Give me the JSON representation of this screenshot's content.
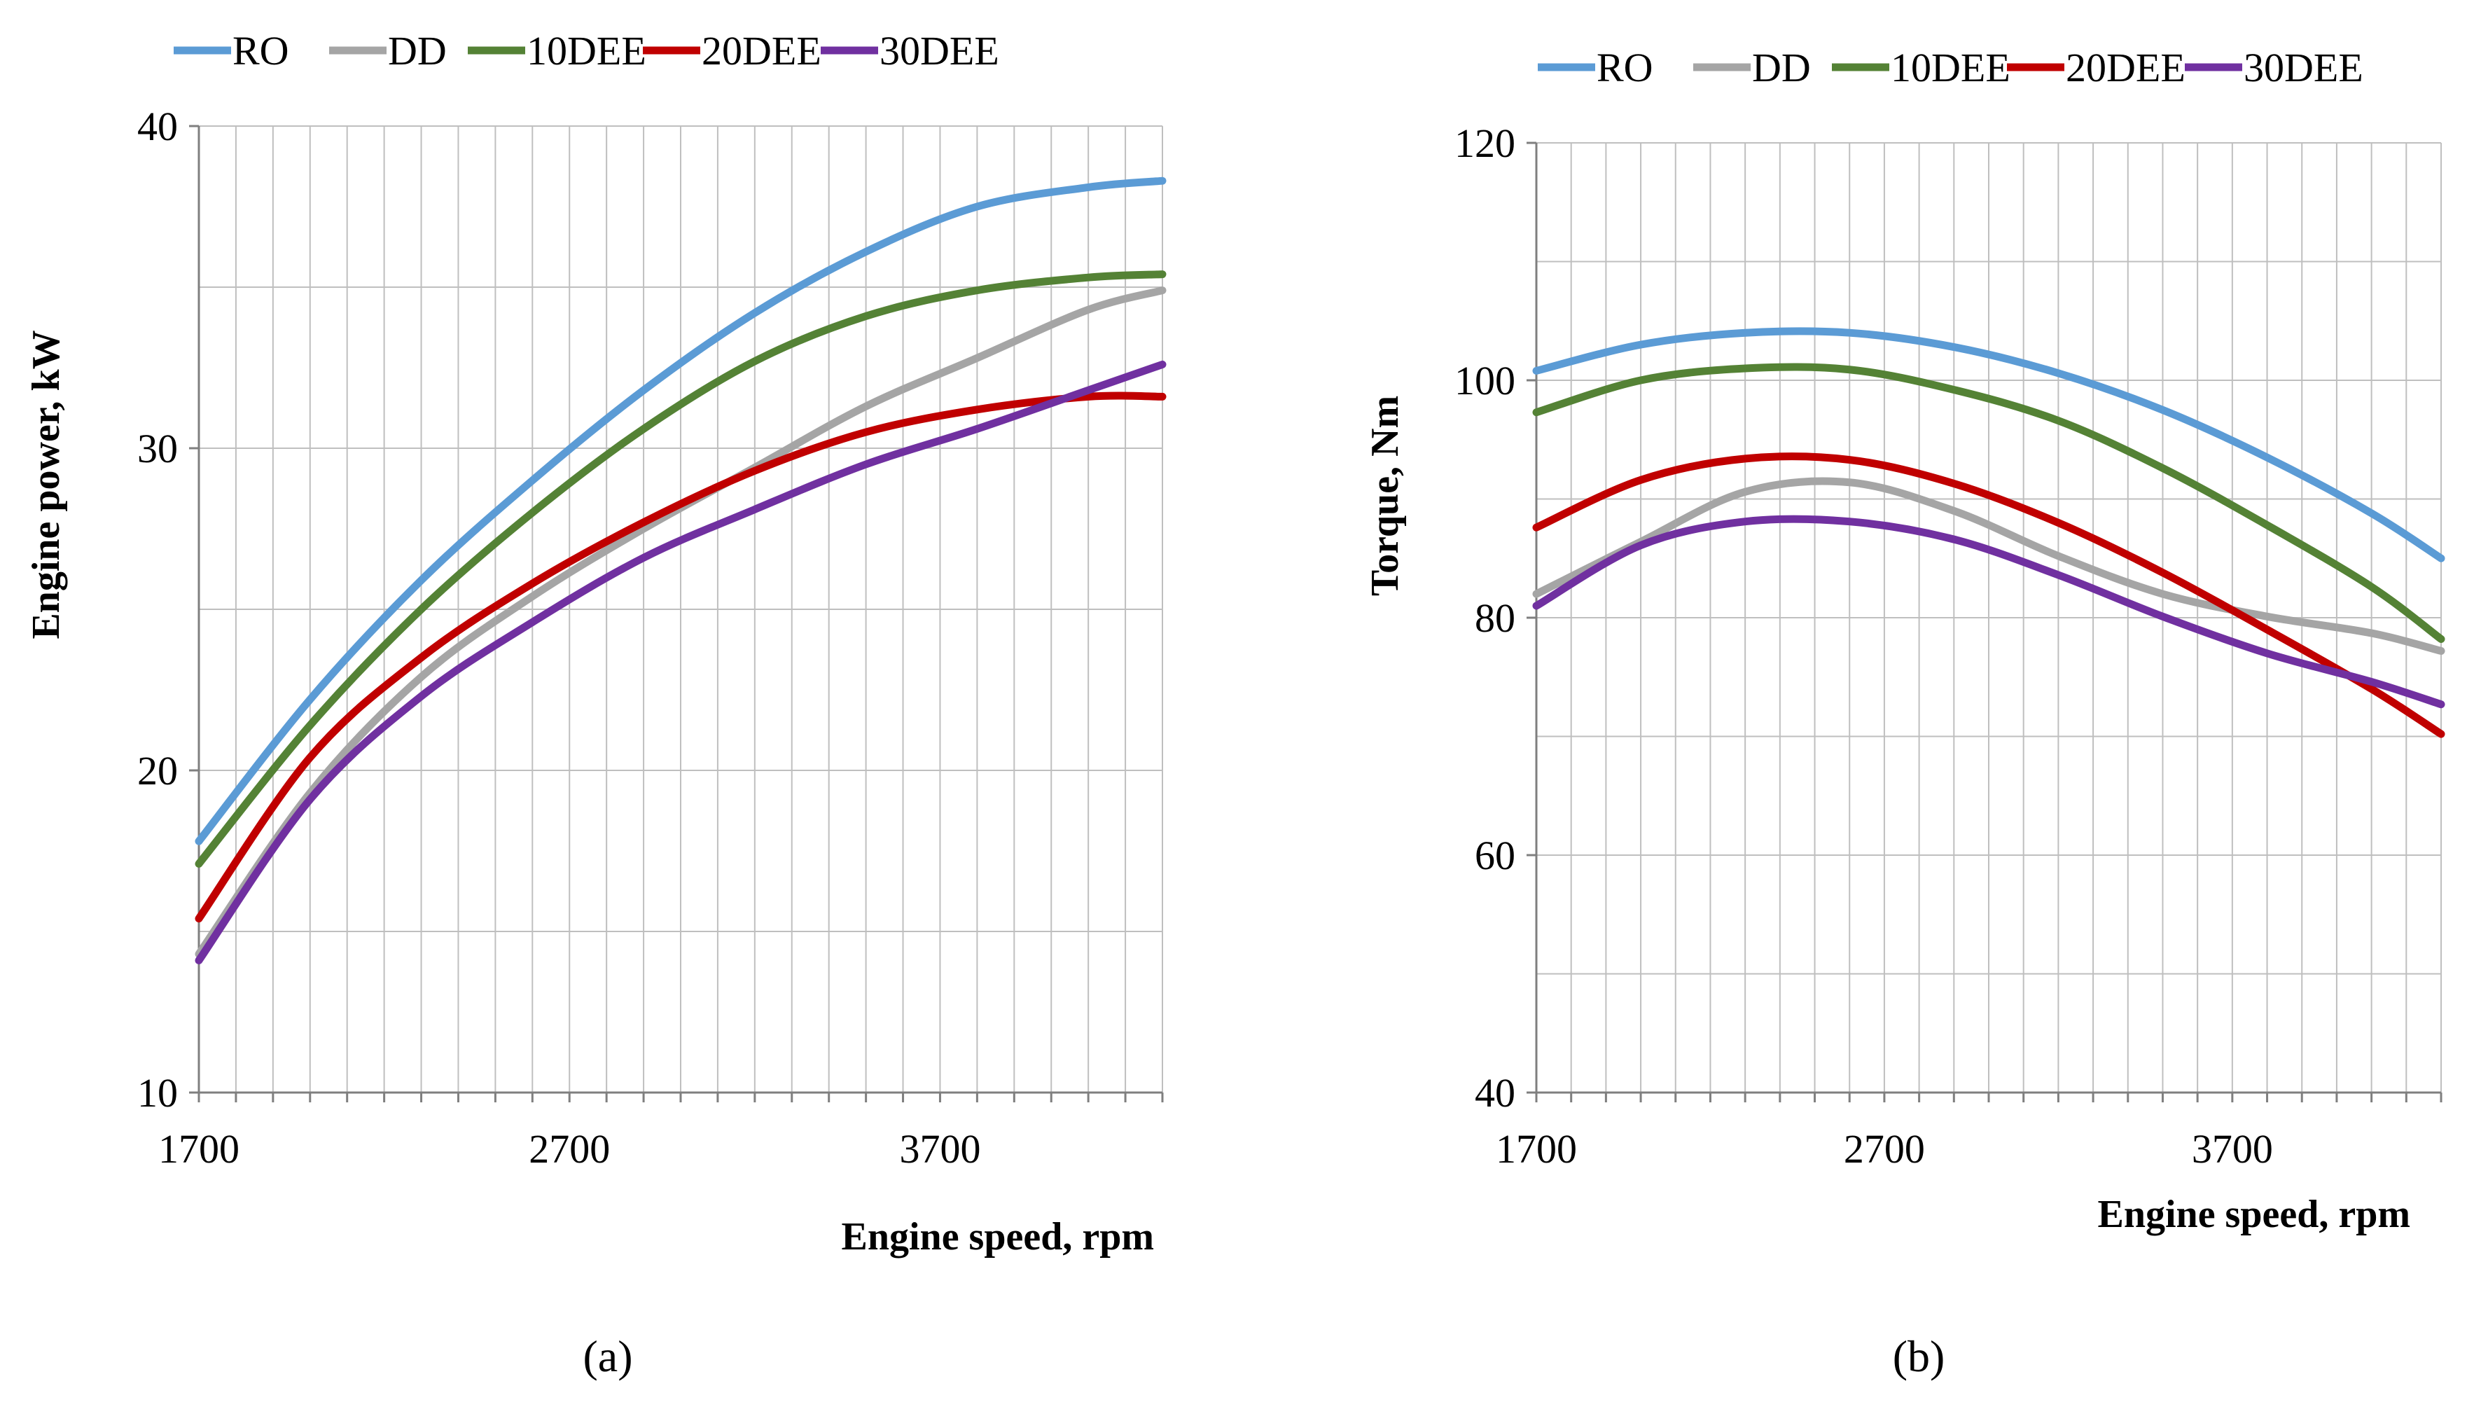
{
  "chart_data": [
    {
      "panel": "(a)",
      "type": "line",
      "title": "",
      "xlabel": "Engine speed, rpm",
      "ylabel": "Engine power, kW",
      "xlim": [
        1700,
        4300
      ],
      "ylim": [
        10,
        40
      ],
      "x_ticks": [
        1700,
        2700,
        3700
      ],
      "y_ticks": [
        10,
        20,
        30,
        40
      ],
      "grid": true,
      "legend_position": "top",
      "series": [
        {
          "name": "RO",
          "color": "#5b9bd5",
          "x": [
            1700,
            2000,
            2300,
            2600,
            2900,
            3200,
            3500,
            3800,
            4100,
            4300
          ],
          "y": [
            17.8,
            22.2,
            25.9,
            29.0,
            31.8,
            34.2,
            36.1,
            37.5,
            38.1,
            38.3
          ]
        },
        {
          "name": "DD",
          "color": "#a5a5a5",
          "x": [
            1700,
            2000,
            2300,
            2600,
            2900,
            3200,
            3500,
            3800,
            4100,
            4300
          ],
          "y": [
            14.3,
            19.3,
            22.9,
            25.4,
            27.5,
            29.4,
            31.3,
            32.8,
            34.3,
            34.9
          ]
        },
        {
          "name": "10DEE",
          "color": "#548235",
          "x": [
            1700,
            2000,
            2300,
            2600,
            2900,
            3200,
            3500,
            3800,
            4100,
            4300
          ],
          "y": [
            17.1,
            21.4,
            25.0,
            28.0,
            30.6,
            32.7,
            34.1,
            34.9,
            35.3,
            35.4
          ]
        },
        {
          "name": "20DEE",
          "color": "#c00000",
          "x": [
            1700,
            2000,
            2300,
            2600,
            2900,
            3200,
            3500,
            3800,
            4100,
            4300
          ],
          "y": [
            15.4,
            20.4,
            23.5,
            25.8,
            27.7,
            29.3,
            30.5,
            31.2,
            31.6,
            31.6
          ]
        },
        {
          "name": "30DEE",
          "color": "#7030a0",
          "x": [
            1700,
            2000,
            2300,
            2600,
            2900,
            3200,
            3500,
            3800,
            4100,
            4300
          ],
          "y": [
            14.1,
            19.1,
            22.3,
            24.6,
            26.6,
            28.1,
            29.5,
            30.6,
            31.8,
            32.6
          ]
        }
      ]
    },
    {
      "panel": "(b)",
      "type": "line",
      "title": "",
      "xlabel": "Engine speed, rpm",
      "ylabel": "Torque, Nm",
      "xlim": [
        1700,
        4300
      ],
      "ylim": [
        40,
        120
      ],
      "x_ticks": [
        1700,
        2700,
        3700
      ],
      "y_ticks": [
        40,
        60,
        80,
        100,
        120
      ],
      "grid": true,
      "legend_position": "top",
      "series": [
        {
          "name": "RO",
          "color": "#5b9bd5",
          "x": [
            1700,
            2000,
            2300,
            2600,
            2900,
            3200,
            3500,
            3800,
            4100,
            4300
          ],
          "y": [
            100.8,
            103.0,
            104.0,
            104.0,
            102.8,
            100.6,
            97.5,
            93.5,
            88.8,
            85.0
          ]
        },
        {
          "name": "DD",
          "color": "#a5a5a5",
          "x": [
            1700,
            2000,
            2300,
            2600,
            2900,
            3200,
            3500,
            3800,
            4100,
            4300
          ],
          "y": [
            82.0,
            86.4,
            90.6,
            91.4,
            89.0,
            85.2,
            82.0,
            80.1,
            78.7,
            77.2
          ]
        },
        {
          "name": "10DEE",
          "color": "#548235",
          "x": [
            1700,
            2000,
            2300,
            2600,
            2900,
            3200,
            3500,
            3800,
            4100,
            4300
          ],
          "y": [
            97.3,
            100.0,
            101.0,
            100.9,
            99.2,
            96.6,
            92.6,
            87.8,
            82.6,
            78.2
          ]
        },
        {
          "name": "20DEE",
          "color": "#c00000",
          "x": [
            1700,
            2000,
            2300,
            2600,
            2900,
            3200,
            3500,
            3800,
            4100,
            4300
          ],
          "y": [
            87.6,
            91.6,
            93.4,
            93.3,
            91.3,
            88.0,
            83.8,
            79.0,
            74.0,
            70.2
          ]
        },
        {
          "name": "30DEE",
          "color": "#7030a0",
          "x": [
            1700,
            2000,
            2300,
            2600,
            2900,
            3200,
            3500,
            3800,
            4100,
            4300
          ],
          "y": [
            81.0,
            86.1,
            88.1,
            88.1,
            86.6,
            83.6,
            80.1,
            77.0,
            74.6,
            72.7
          ]
        }
      ]
    }
  ]
}
